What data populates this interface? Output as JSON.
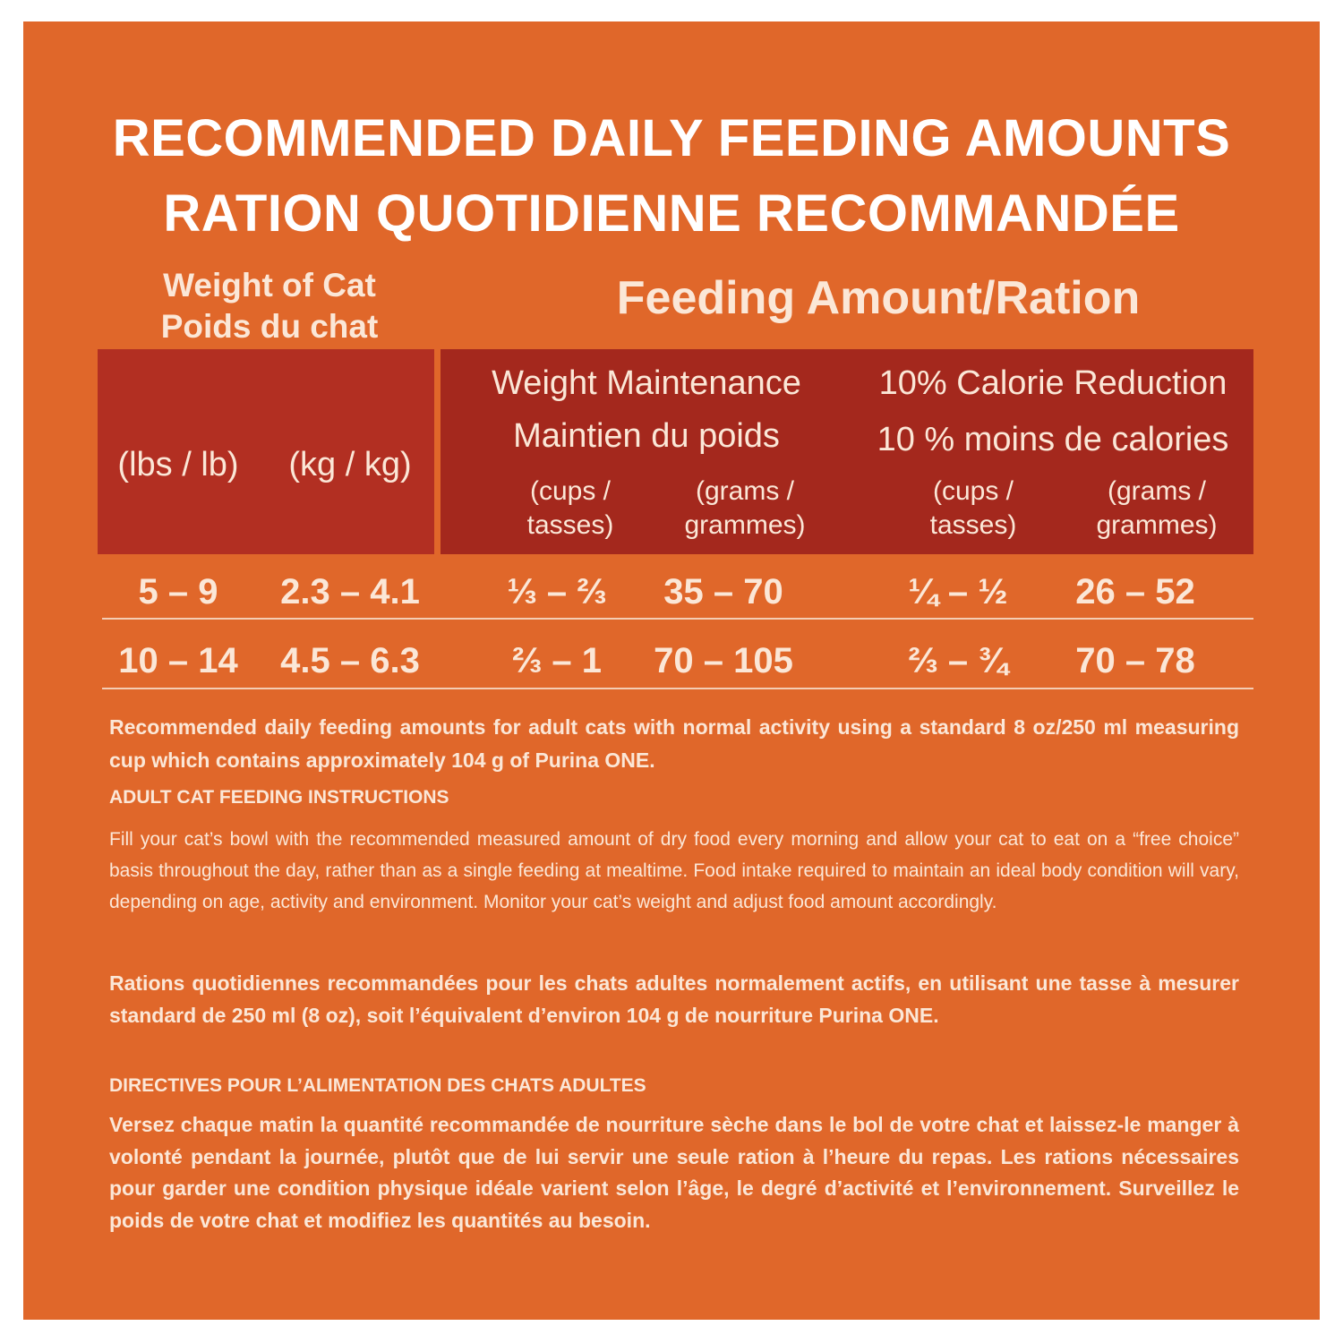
{
  "title": {
    "line1": "RECOMMENDED DAILY FEEDING AMOUNTS",
    "line2": "RATION QUOTIDIENNE RECOMMANDÉE"
  },
  "table": {
    "cat_weight_title": {
      "line1": "Weight of Cat",
      "line2": "Poids du chat"
    },
    "feeding_title": "Feeding Amount/Ration",
    "units": {
      "lbs": "(lbs / lb)",
      "kg": "(kg / kg)"
    },
    "maintenance": {
      "line1": "Weight Maintenance",
      "line2": "Maintien du poids",
      "cups": {
        "line1": "(cups /",
        "line2": "tasses)"
      },
      "grams": {
        "line1": "(grams /",
        "line2": "grammes)"
      }
    },
    "reduction": {
      "line1": "10% Calorie Reduction",
      "line2": "10 % moins de calories",
      "cups": {
        "line1": "(cups /",
        "line2": "tasses)"
      },
      "grams": {
        "line1": "(grams /",
        "line2": "grammes)"
      }
    },
    "rows": [
      {
        "lbs": "5 – 9",
        "kg": "2.3 – 4.1",
        "maint_cups": "⅓ – ⅔",
        "maint_grams": "35 – 70",
        "red_cups": "¼ – ½",
        "red_grams": "26 – 52"
      },
      {
        "lbs": "10 – 14",
        "kg": "4.5 – 6.3",
        "maint_cups": "⅔ – 1",
        "maint_grams": "70 – 105",
        "red_cups": "⅔ – ¾",
        "red_grams": "70 – 78"
      }
    ]
  },
  "text": {
    "note_en": "Recommended daily feeding amounts for adult cats with normal activity using a standard 8 oz/250 ml measuring cup which contains approximately 104 g of Purina ONE.",
    "heading_en": "ADULT CAT FEEDING INSTRUCTIONS",
    "instructions_en": "Fill your cat’s bowl with the recommended measured amount of dry food every morning and allow your cat to eat on a “free choice” basis throughout the day, rather than as a single feeding at mealtime. Food intake required to maintain an ideal body condition will vary, depending on age, activity and environment. Monitor your cat’s weight and adjust food amount accordingly.",
    "note_fr": "Rations quotidiennes recommandées pour les chats adultes normalement actifs, en utilisant une tasse à mesurer standard de 250 ml (8 oz), soit l’équivalent d’environ 104 g de nourriture Purina ONE.",
    "heading_fr": "DIRECTIVES POUR L’ALIMENTATION DES CHATS ADULTES",
    "instructions_fr": "Versez chaque matin la quantité recommandée de nourriture sèche dans le bol de votre chat et laissez-le manger à volonté pendant la journée, plutôt que de lui servir une seule ration à l’heure du repas. Les rations nécessaires pour garder une condition physique idéale varient selon l’âge, le degré d’activité et l’environnement. Surveillez le poids de votre chat et modifiez les quantités au besoin."
  },
  "colors": {
    "background": "#e0672a",
    "header_left": "#b22f22",
    "header_right": "#a4281d",
    "text": "#fbe7d7"
  }
}
